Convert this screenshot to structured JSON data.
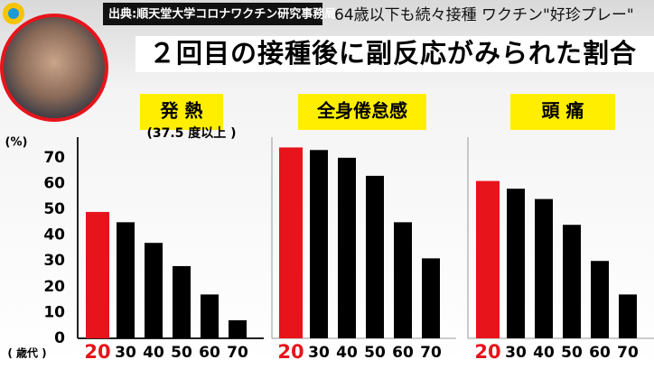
{
  "header": {
    "source": "出典:順天堂大学コロナワクチン研究事務局",
    "headline": "64歳以下も続々接種 ワクチン\"好珍プレー\"",
    "title": "２回目の接種後に副反応がみられた割合"
  },
  "chart_data": [
    {
      "type": "bar",
      "title": "発 熱",
      "subtitle": "(37.5 度以上 )",
      "ylabel": "(%)",
      "xlabel": "( 歳代 )",
      "categories": [
        "20",
        "30",
        "40",
        "50",
        "60",
        "70"
      ],
      "values": [
        49,
        45,
        37,
        28,
        17,
        7
      ],
      "colors": [
        "#e8141b",
        "#000000",
        "#000000",
        "#000000",
        "#000000",
        "#000000"
      ],
      "ylim": [
        0,
        78
      ],
      "yticks": [
        0,
        10,
        20,
        30,
        40,
        50,
        60,
        70
      ]
    },
    {
      "type": "bar",
      "title": "全身倦怠感",
      "categories": [
        "20",
        "30",
        "40",
        "50",
        "60",
        "70"
      ],
      "values": [
        74,
        73,
        70,
        63,
        45,
        31
      ],
      "colors": [
        "#e8141b",
        "#000000",
        "#000000",
        "#000000",
        "#000000",
        "#000000"
      ],
      "ylim": [
        0,
        78
      ]
    },
    {
      "type": "bar",
      "title": "頭 痛",
      "categories": [
        "20",
        "30",
        "40",
        "50",
        "60",
        "70"
      ],
      "values": [
        61,
        58,
        54,
        44,
        30,
        17
      ],
      "colors": [
        "#e8141b",
        "#000000",
        "#000000",
        "#000000",
        "#000000",
        "#000000"
      ],
      "ylim": [
        0,
        78
      ]
    }
  ]
}
